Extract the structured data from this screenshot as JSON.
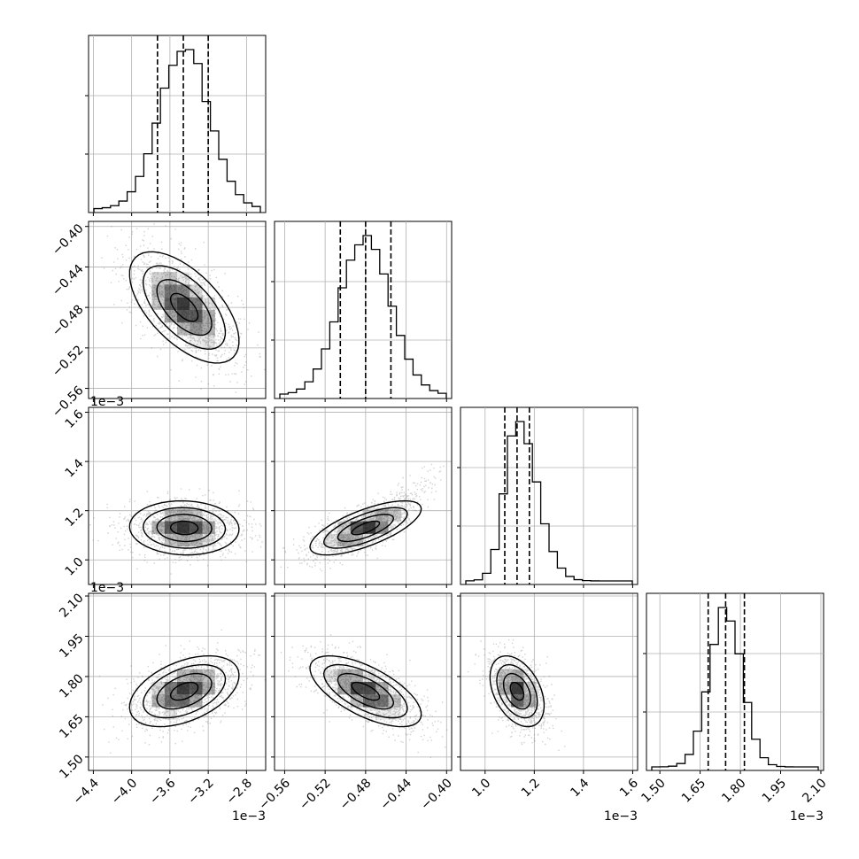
{
  "chart_data": {
    "type": "corner",
    "n_params": 4,
    "grid": true,
    "colors": {
      "line": "#000000",
      "grid": "#b0b0b0",
      "points": "#7f7f7f",
      "density": "#000000"
    },
    "parameters": [
      {
        "range": [
          -4.45,
          -2.6
        ],
        "ticks": [
          -4.4,
          -4.0,
          -3.6,
          -3.2,
          -2.8
        ],
        "tick_labels": [
          "−4.4",
          "−4.0",
          "−3.6",
          "−3.2",
          "−2.8"
        ],
        "offset_label": "1e−3",
        "mean": -3.45,
        "sd": 0.26,
        "quantiles": [
          -3.73,
          -3.46,
          -3.2
        ]
      },
      {
        "range": [
          -0.57,
          -0.395
        ],
        "ticks": [
          -0.56,
          -0.52,
          -0.48,
          -0.44,
          -0.4
        ],
        "tick_labels": [
          "−0.56",
          "−0.52",
          "−0.48",
          "−0.44",
          "−0.40"
        ],
        "offset_label": "",
        "mean": -0.48,
        "sd": 0.025,
        "quantiles": [
          -0.505,
          -0.48,
          -0.455
        ]
      },
      {
        "range": [
          0.9,
          1.62
        ],
        "ticks": [
          1.0,
          1.2,
          1.4,
          1.6
        ],
        "tick_labels": [
          "1.0",
          "1.2",
          "1.4",
          "1.6"
        ],
        "offset_label": "1e−3",
        "mean": 1.13,
        "sd": 0.05,
        "quantiles": [
          1.08,
          1.13,
          1.18
        ]
      },
      {
        "range": [
          1.45,
          2.11
        ],
        "ticks": [
          1.5,
          1.65,
          1.8,
          1.95,
          2.1
        ],
        "tick_labels": [
          "1.50",
          "1.65",
          "1.80",
          "1.95",
          "2.10"
        ],
        "offset_label": "1e−3",
        "mean": 1.745,
        "sd": 0.06,
        "quantiles": [
          1.68,
          1.745,
          1.815
        ]
      }
    ],
    "row_offset_labels": [
      "",
      "1e−3",
      "1e−3"
    ],
    "correlations": [
      {
        "pair": [
          0,
          1
        ],
        "rho": -0.6
      },
      {
        "pair": [
          0,
          2
        ],
        "rho": -0.05
      },
      {
        "pair": [
          1,
          2
        ],
        "rho": 0.7
      },
      {
        "pair": [
          0,
          3
        ],
        "rho": 0.45
      },
      {
        "pair": [
          1,
          3
        ],
        "rho": -0.65
      },
      {
        "pair": [
          2,
          3
        ],
        "rho": -0.4
      }
    ],
    "hist_bins": 20,
    "contour_levels": [
      0.5,
      1.0,
      1.5,
      2.0
    ]
  }
}
